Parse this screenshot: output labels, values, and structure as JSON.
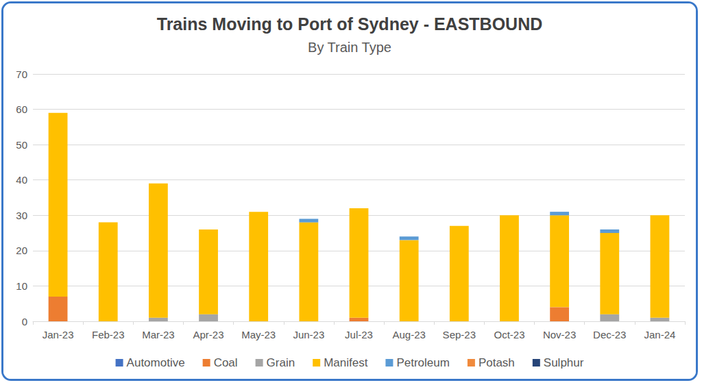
{
  "chart_data": {
    "type": "bar",
    "title": "Trains Moving to Port of Sydney - EASTBOUND",
    "subtitle": "By Train Type",
    "categories": [
      "Jan-23",
      "Feb-23",
      "Mar-23",
      "Apr-23",
      "May-23",
      "Jun-23",
      "Jul-23",
      "Aug-23",
      "Sep-23",
      "Oct-23",
      "Nov-23",
      "Dec-23",
      "Jan-24"
    ],
    "series": [
      {
        "name": "Automotive",
        "color": "#4472c4",
        "values": [
          0,
          0,
          0,
          0,
          0,
          0,
          0,
          0,
          0,
          0,
          0,
          0,
          0
        ]
      },
      {
        "name": "Coal",
        "color": "#ed7d31",
        "values": [
          7,
          0,
          0,
          0,
          0,
          0,
          1,
          0,
          0,
          0,
          4,
          0,
          0
        ]
      },
      {
        "name": "Grain",
        "color": "#a5a5a5",
        "values": [
          0,
          0,
          1,
          2,
          0,
          0,
          0,
          0,
          0,
          0,
          0,
          2,
          1
        ]
      },
      {
        "name": "Manifest",
        "color": "#ffc000",
        "values": [
          52,
          28,
          38,
          24,
          31,
          28,
          31,
          23,
          27,
          30,
          26,
          23,
          29
        ]
      },
      {
        "name": "Petroleum",
        "color": "#5b9bd5",
        "values": [
          0,
          0,
          0,
          0,
          0,
          1,
          0,
          1,
          0,
          0,
          1,
          1,
          0
        ]
      },
      {
        "name": "Potash",
        "color": "#f08a3c",
        "values": [
          0,
          0,
          0,
          0,
          0,
          0,
          0,
          0,
          0,
          0,
          0,
          0,
          0
        ]
      },
      {
        "name": "Sulphur",
        "color": "#264478",
        "values": [
          0,
          0,
          0,
          0,
          0,
          0,
          0,
          0,
          0,
          0,
          0,
          0,
          0
        ]
      }
    ],
    "ylim": [
      0,
      70
    ],
    "yticks": [
      0,
      10,
      20,
      30,
      40,
      50,
      60,
      70
    ],
    "stacked": true,
    "grid": true,
    "legend": "bottom"
  }
}
